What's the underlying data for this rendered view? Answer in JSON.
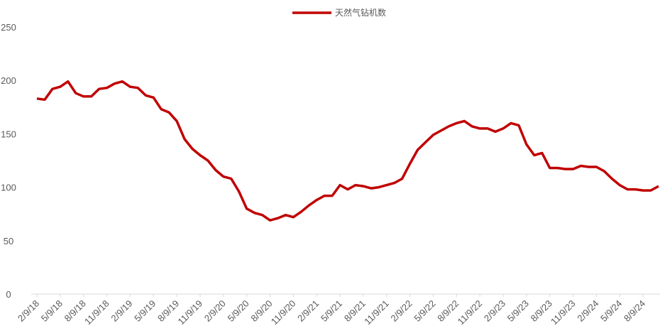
{
  "chart_data": {
    "type": "line",
    "categories": [
      "2/9/18",
      null,
      null,
      "5/9/18",
      null,
      null,
      "8/9/18",
      null,
      null,
      "11/9/18",
      null,
      null,
      "2/9/19",
      null,
      null,
      "5/9/19",
      null,
      null,
      "8/9/19",
      null,
      null,
      "11/9/19",
      null,
      null,
      "2/9/20",
      null,
      null,
      "5/9/20",
      null,
      null,
      "8/9/20",
      null,
      null,
      "11/9/20",
      null,
      null,
      "2/9/21",
      null,
      null,
      "5/9/21",
      null,
      null,
      "8/9/21",
      null,
      null,
      "11/9/21",
      null,
      null,
      "2/9/22",
      null,
      null,
      "5/9/22",
      null,
      null,
      "8/9/22",
      null,
      null,
      "11/9/22",
      null,
      null,
      "2/9/23",
      null,
      null,
      "5/9/23",
      null,
      null,
      "8/9/23",
      null,
      null,
      "11/9/23",
      null,
      null,
      "2/9/24",
      null,
      null,
      "5/9/24",
      null,
      null,
      "8/9/24",
      null,
      null
    ],
    "series": [
      {
        "name": "天然气钻机数",
        "color": "#c00000",
        "values": [
          183,
          182,
          192,
          194,
          199,
          188,
          185,
          185,
          192,
          193,
          197,
          199,
          194,
          193,
          186,
          184,
          173,
          170,
          162,
          145,
          136,
          130,
          125,
          116,
          110,
          108,
          96,
          80,
          76,
          74,
          69,
          71,
          74,
          72,
          77,
          83,
          88,
          92,
          92,
          102,
          98,
          102,
          101,
          99,
          100,
          102,
          104,
          108,
          122,
          135,
          142,
          149,
          153,
          157,
          160,
          162,
          157,
          155,
          155,
          152,
          155,
          160,
          158,
          140,
          130,
          132,
          118,
          118,
          117,
          117,
          120,
          119,
          119,
          115,
          108,
          102,
          98,
          98,
          97,
          97,
          101
        ]
      }
    ],
    "ylim": [
      0,
      250
    ],
    "yticks": [
      0,
      50,
      100,
      150,
      200,
      250
    ],
    "grid": false,
    "legend": "top"
  }
}
